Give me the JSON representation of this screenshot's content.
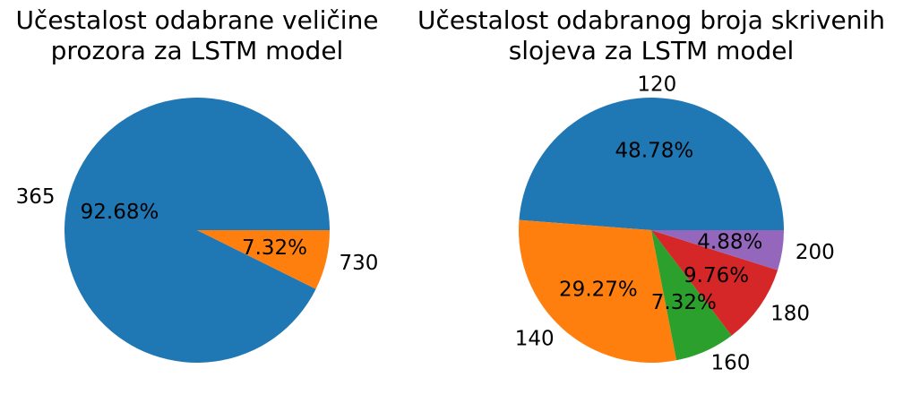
{
  "chart_data": [
    {
      "type": "pie",
      "title_lines": [
        "Učestalost odabrane veličine",
        "prozora za LSTM model"
      ],
      "labels": [
        "365",
        "730"
      ],
      "percent_labels": [
        "92.68%",
        "7.32%"
      ],
      "values": [
        92.68,
        7.32
      ],
      "colors": [
        "#1f77b4",
        "#ff7f0e"
      ],
      "start_angle_deg": 0,
      "direction": "counterclockwise",
      "legend": "none"
    },
    {
      "type": "pie",
      "title_lines": [
        "Učestalost odabranog broja skrivenih",
        "slojeva za LSTM model"
      ],
      "labels": [
        "120",
        "140",
        "160",
        "180",
        "200"
      ],
      "percent_labels": [
        "48.78%",
        "29.27%",
        "7.32%",
        "9.76%",
        "4.88%"
      ],
      "values": [
        48.78,
        29.27,
        7.32,
        9.76,
        4.88
      ],
      "colors": [
        "#1f77b4",
        "#ff7f0e",
        "#2ca02c",
        "#d62728",
        "#9467bd"
      ],
      "start_angle_deg": 0,
      "direction": "counterclockwise",
      "legend": "none"
    }
  ]
}
